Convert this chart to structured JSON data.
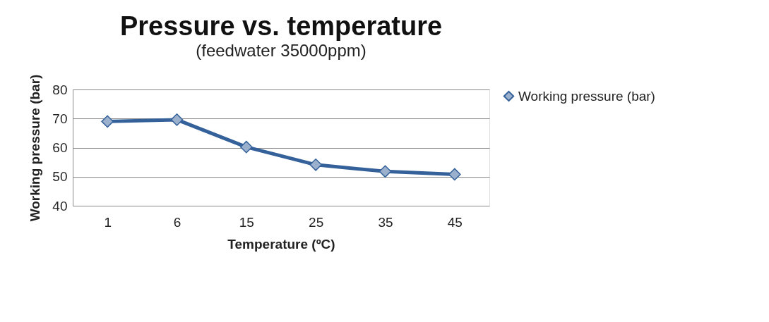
{
  "chart_data": {
    "type": "line",
    "title": "Pressure vs. temperature",
    "subtitle": "(feedwater 35000ppm)",
    "xlabel": "Temperature (ºC)",
    "ylabel": "Working pressure (bar)",
    "categories": [
      "1",
      "6",
      "15",
      "25",
      "35",
      "45"
    ],
    "series": [
      {
        "name": "Working pressure (bar)",
        "color": "#35619a",
        "values": [
          69.0,
          69.6,
          60.2,
          54.1,
          51.8,
          50.8
        ]
      }
    ],
    "ylim": [
      40,
      80
    ],
    "yticks": [
      40,
      50,
      60,
      70,
      80
    ],
    "grid": "y",
    "legend": "right",
    "marker": "diamond",
    "line_style": "solid"
  }
}
